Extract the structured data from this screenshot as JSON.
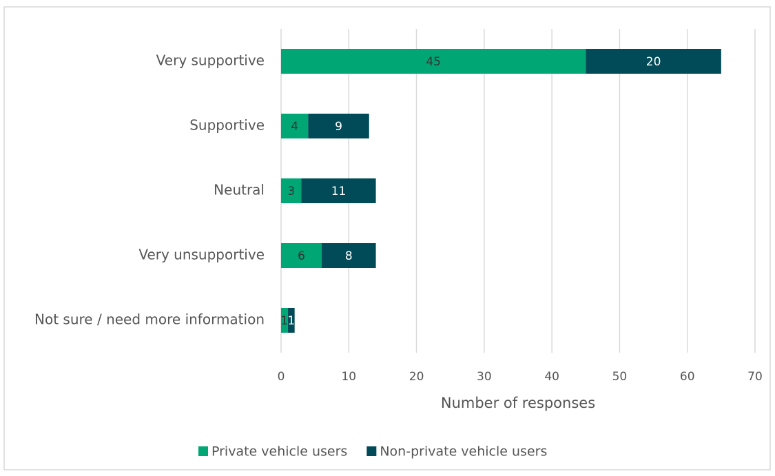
{
  "chart_data": {
    "type": "bar",
    "orientation": "horizontal",
    "stacked": true,
    "categories": [
      "Very supportive",
      "Supportive",
      "Neutral",
      "Very unsupportive",
      "Not sure / need more information"
    ],
    "series": [
      {
        "name": "Private vehicle users",
        "color": "#00a674",
        "label_color": "#333333",
        "values": [
          45,
          4,
          3,
          6,
          1
        ]
      },
      {
        "name": "Non-private vehicle users",
        "color": "#004b57",
        "label_color": "#ffffff",
        "values": [
          20,
          9,
          11,
          8,
          1
        ]
      }
    ],
    "xlabel": "Number of responses",
    "xlim": [
      0,
      70
    ],
    "xticks": [
      0,
      10,
      20,
      30,
      40,
      50,
      60,
      70
    ],
    "grid": true,
    "legend": "bottom"
  }
}
